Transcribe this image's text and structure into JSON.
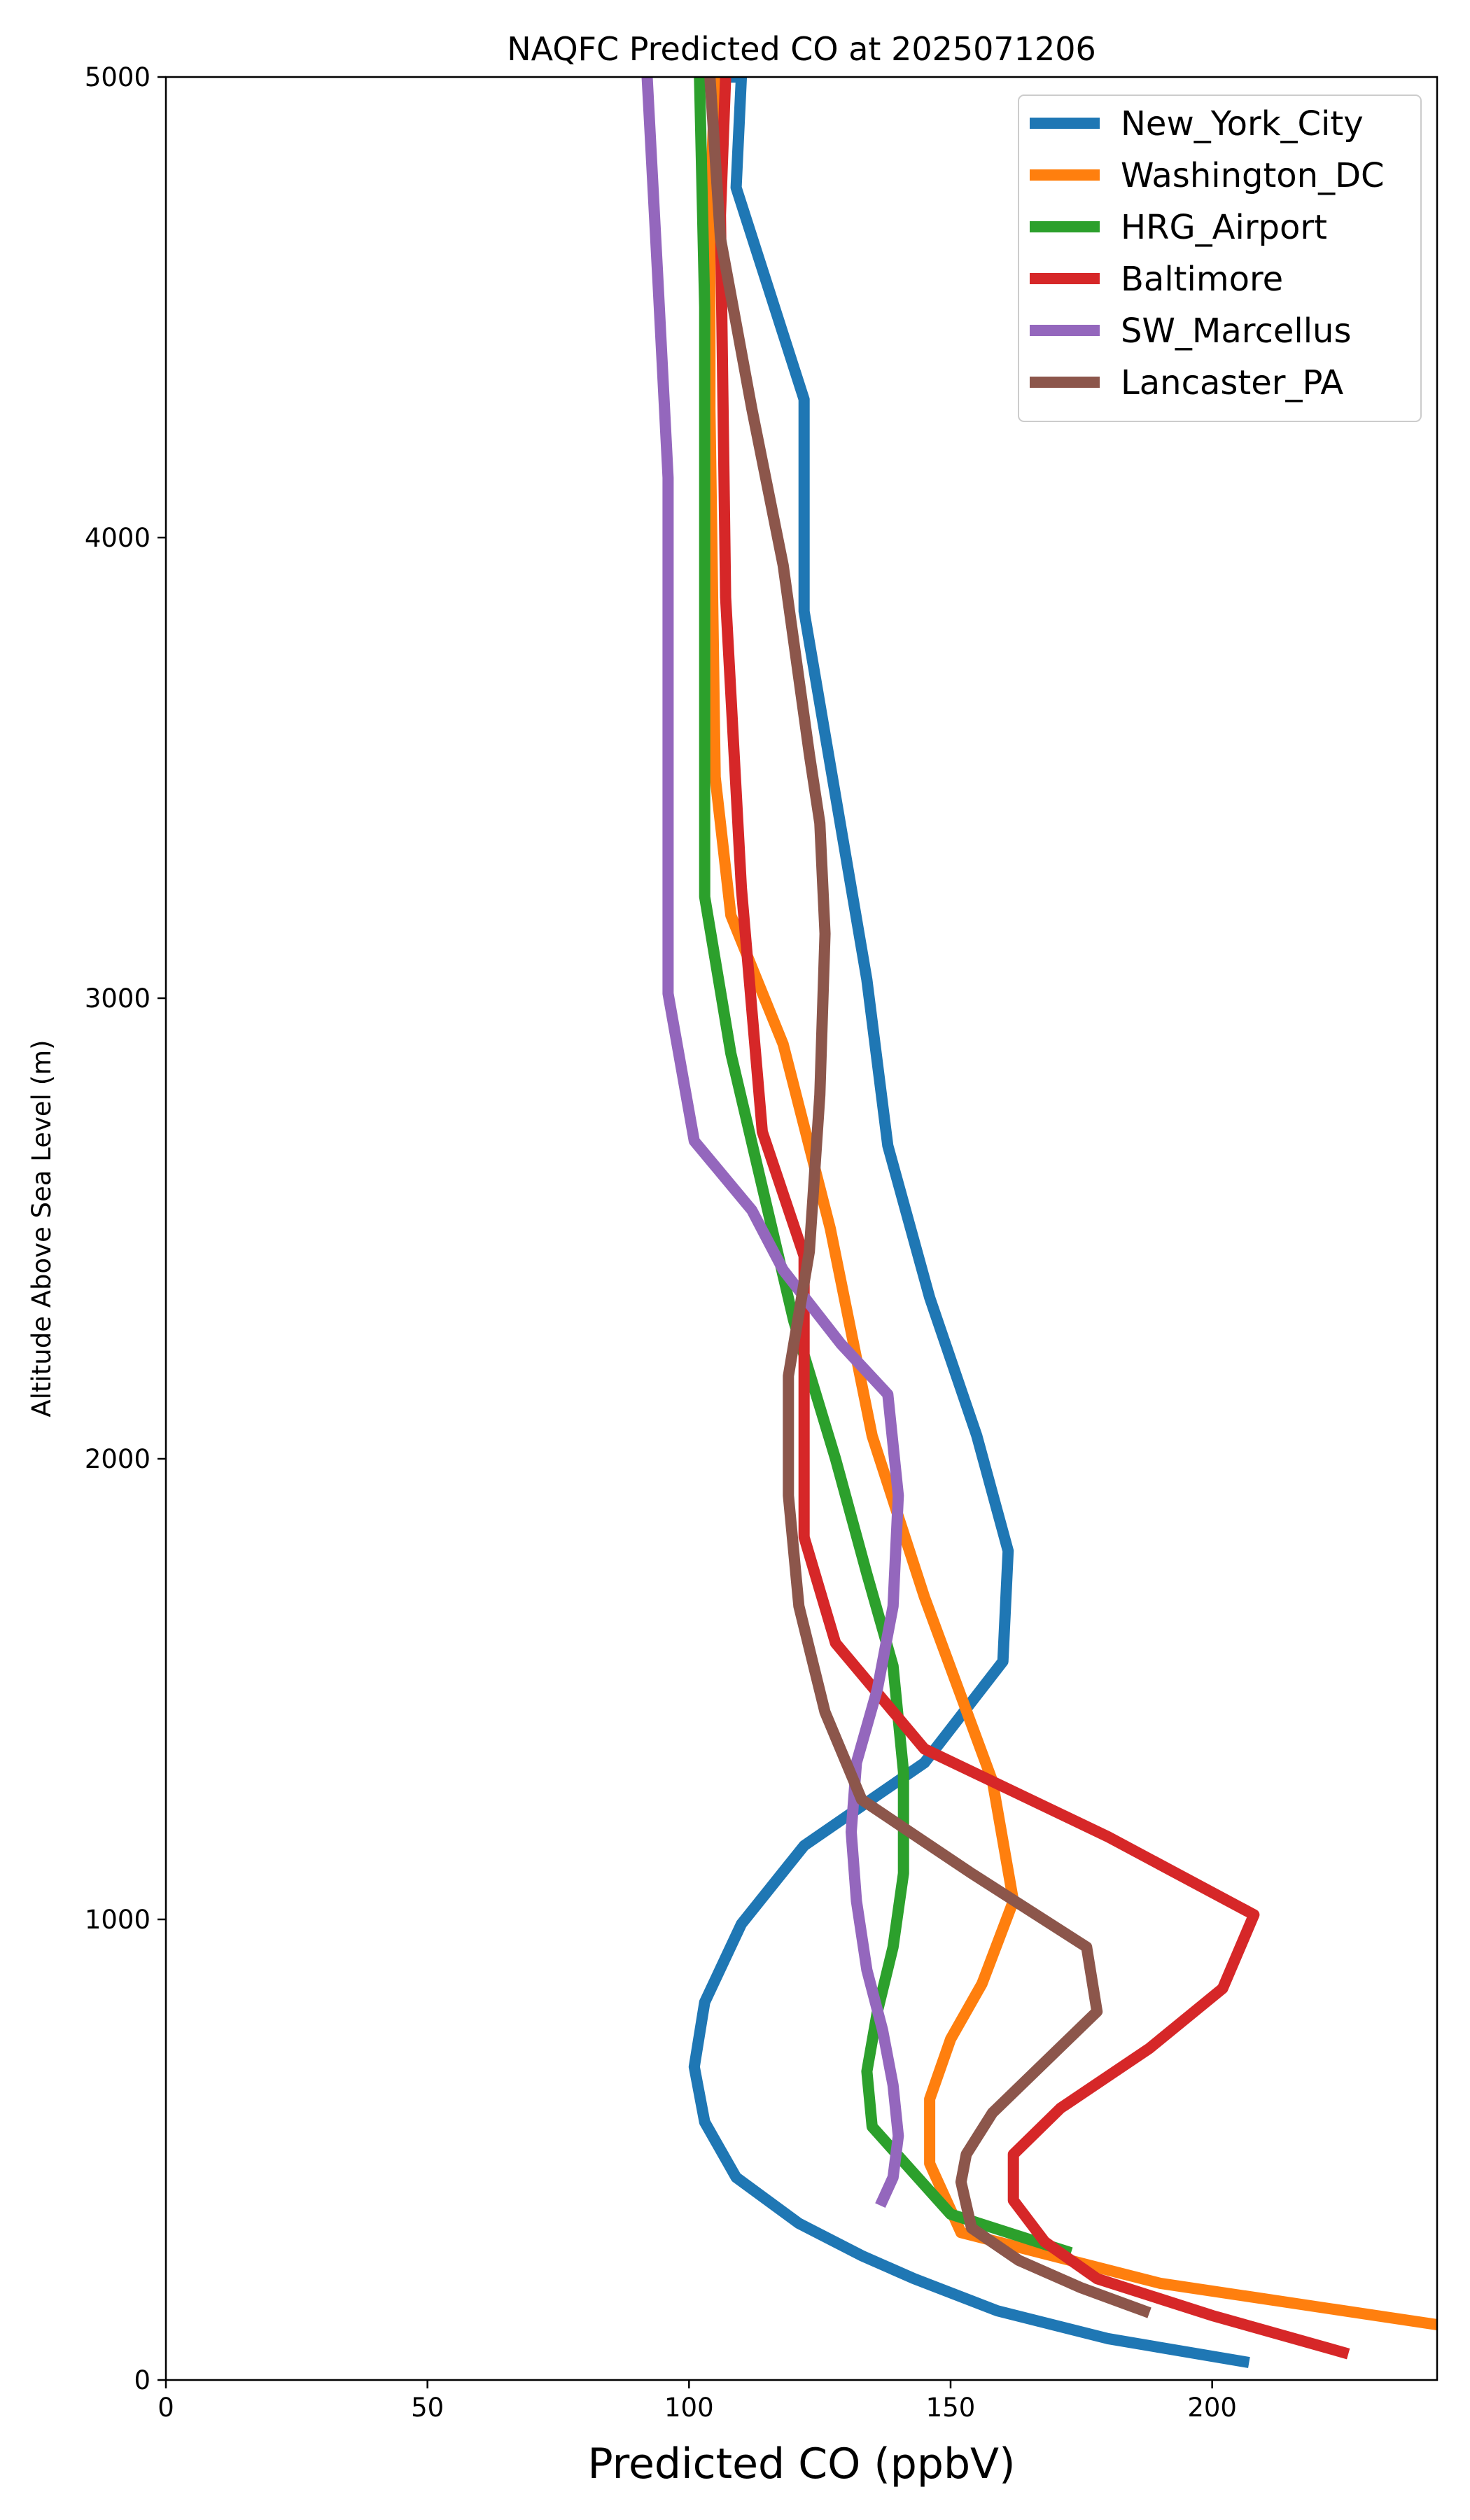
{
  "chart_data": {
    "type": "line",
    "title": "NAQFC Predicted CO at 2025071206",
    "xlabel": "Predicted CO (ppbV)",
    "ylabel": "Altitude Above Sea Level (m)",
    "xlim": [
      0,
      243
    ],
    "ylim": [
      0,
      5000
    ],
    "xticks": [
      0,
      50,
      100,
      150,
      200
    ],
    "yticks": [
      0,
      1000,
      2000,
      3000,
      4000,
      5000
    ],
    "grid": false,
    "legend_position": "top-right",
    "series": [
      {
        "name": "New_York_City",
        "color": "#1f77b4",
        "x": [
          206,
          180,
          159,
          143,
          133,
          121,
          109,
          103,
          101,
          103,
          110,
          122,
          145,
          160,
          161,
          155,
          146,
          138,
          134,
          122,
          122,
          109,
          110,
          108
        ],
        "y": [
          40,
          90,
          150,
          220,
          270,
          340,
          440,
          560,
          680,
          820,
          990,
          1160,
          1340,
          1560,
          1800,
          2050,
          2350,
          2680,
          3040,
          3840,
          4300,
          4760,
          5000,
          5000
        ]
      },
      {
        "name": "Washington_DC",
        "color": "#ff7f0e",
        "x": [
          243,
          190,
          152,
          146,
          146,
          150,
          156,
          162,
          158,
          145,
          135,
          127,
          118,
          108,
          105,
          104,
          104,
          105
        ],
        "y": [
          120,
          210,
          320,
          470,
          610,
          740,
          860,
          1040,
          1300,
          1700,
          2050,
          2500,
          2900,
          3180,
          3480,
          4280,
          4700,
          5000
        ]
      },
      {
        "name": "HRG_Airport",
        "color": "#2ca02c",
        "x": [
          172,
          150,
          135,
          134,
          136,
          139,
          141,
          141,
          139,
          134,
          128,
          120,
          108,
          103,
          103,
          103,
          102
        ],
        "y": [
          280,
          360,
          550,
          670,
          800,
          940,
          1100,
          1320,
          1550,
          1750,
          2000,
          2300,
          2880,
          3220,
          3700,
          4500,
          5000
        ]
      },
      {
        "name": "Baltimore",
        "color": "#d62728",
        "x": [
          225,
          200,
          178,
          168,
          162,
          162,
          171,
          188,
          202,
          208,
          180,
          145,
          128,
          122,
          122,
          122,
          114,
          110,
          107,
          106,
          107
        ],
        "y": [
          60,
          140,
          220,
          300,
          390,
          490,
          590,
          720,
          850,
          1010,
          1180,
          1370,
          1600,
          1830,
          2100,
          2440,
          2710,
          3240,
          3870,
          4700,
          5000
        ]
      },
      {
        "name": "SW_Marcellus",
        "color": "#9467bd",
        "x": [
          137,
          139,
          140,
          139,
          137,
          134,
          132,
          131,
          132,
          136,
          139,
          140,
          138,
          129,
          118,
          112,
          101,
          96,
          96,
          96,
          96,
          94,
          92
        ],
        "y": [
          390,
          440,
          530,
          640,
          760,
          890,
          1040,
          1190,
          1340,
          1500,
          1680,
          1920,
          2140,
          2250,
          2410,
          2540,
          2690,
          3010,
          3300,
          3700,
          4130,
          4570,
          5000
        ]
      },
      {
        "name": "Lancaster_PA",
        "color": "#8c564b",
        "x": [
          187,
          175,
          163,
          154,
          152,
          153,
          158,
          168,
          178,
          176,
          154,
          133,
          126,
          121,
          119,
          119,
          123,
          125,
          126,
          125,
          123,
          118,
          112,
          106,
          104
        ],
        "y": [
          150,
          200,
          260,
          330,
          430,
          490,
          580,
          690,
          800,
          940,
          1100,
          1260,
          1450,
          1680,
          1920,
          2180,
          2450,
          2790,
          3140,
          3380,
          3530,
          3940,
          4280,
          4650,
          5000
        ]
      }
    ]
  }
}
